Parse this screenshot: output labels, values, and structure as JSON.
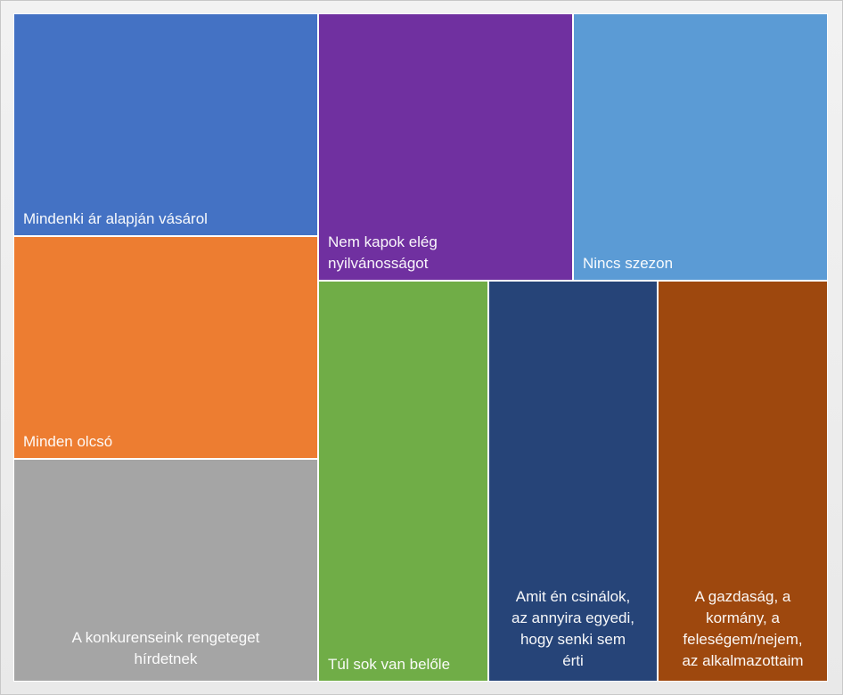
{
  "chart_data": {
    "type": "treemap",
    "title": "",
    "categories": [
      "Mindenki ár alapján vásárol",
      "Minden olcsó",
      "A konkurenseink rengeteget\nhírdetnek",
      "Nem kapok elég\nnyilvánosságot",
      "Nincs szezon",
      "Túl sok van belőle",
      "Amit én csinálok,\naz annyira egyedi,\nhogy senki sem\nérti",
      "A gazdaság, a\nkormány, a\nfeleségem/nejem,\naz alkalmazottaim"
    ],
    "values": [
      1,
      1,
      1,
      1,
      1,
      1,
      1,
      1
    ],
    "colors": [
      "#4472C4",
      "#ED7D31",
      "#A5A5A5",
      "#7030A0",
      "#5B9BD5",
      "#70AD47",
      "#264478",
      "#9E480E"
    ]
  }
}
